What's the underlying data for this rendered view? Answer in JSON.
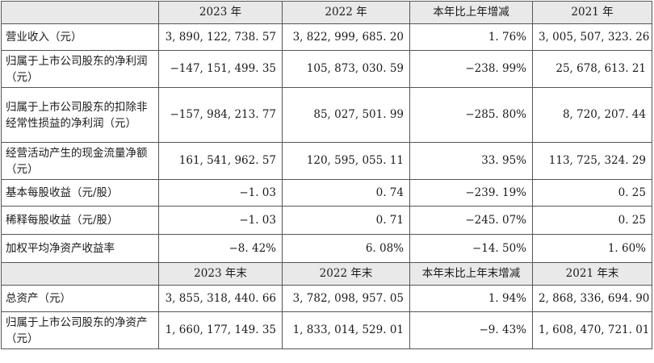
{
  "table": {
    "header1": [
      "",
      "2023 年",
      "2022 年",
      "本年比上年增减",
      "2021 年"
    ],
    "rows1": [
      {
        "label": "营业收入（元）",
        "v2023": "3, 890, 122, 738. 57",
        "v2022": "3, 822, 999, 685. 20",
        "change": "1. 76%",
        "v2021": "3, 005, 507, 323. 26"
      },
      {
        "label": "归属于上市公司股东的净利润（元）",
        "v2023": "−147, 151, 499. 35",
        "v2022": "105, 873, 030. 59",
        "change": "−238. 99%",
        "v2021": "25, 678, 613. 21"
      },
      {
        "label": "归属于上市公司股东的扣除非经常性损益的净利润（元）",
        "v2023": "−157, 984, 213. 77",
        "v2022": "85, 027, 501. 99",
        "change": "−285. 80%",
        "v2021": "8, 720, 207. 44"
      },
      {
        "label": "经营活动产生的现金流量净额（元）",
        "v2023": "161, 541, 962. 57",
        "v2022": "120, 595, 055. 11",
        "change": "33. 95%",
        "v2021": "113, 725, 324. 29"
      },
      {
        "label": "基本每股收益（元/股）",
        "v2023": "−1. 03",
        "v2022": "0. 74",
        "change": "−239. 19%",
        "v2021": "0. 25"
      },
      {
        "label": "稀释每股收益（元/股）",
        "v2023": "−1. 03",
        "v2022": "0. 71",
        "change": "−245. 07%",
        "v2021": "0. 25"
      },
      {
        "label": "加权平均净资产收益率",
        "v2023": "−8. 42%",
        "v2022": "6. 08%",
        "change": "−14. 50%",
        "v2021": "1. 60%"
      }
    ],
    "header2": [
      "",
      "2023 年末",
      "2022 年末",
      "本年末比上年末增减",
      "2021 年末"
    ],
    "rows2": [
      {
        "label": "总资产（元）",
        "v2023": "3, 855, 318, 440. 66",
        "v2022": "3, 782, 098, 957. 05",
        "change": "1. 94%",
        "v2021": "2, 868, 336, 694. 90"
      },
      {
        "label": "归属于上市公司股东的净资产（元）",
        "v2023": "1, 660, 177, 149. 35",
        "v2022": "1, 833, 014, 529. 01",
        "change": "−9. 43%",
        "v2021": "1, 608, 470, 721. 01"
      }
    ]
  }
}
